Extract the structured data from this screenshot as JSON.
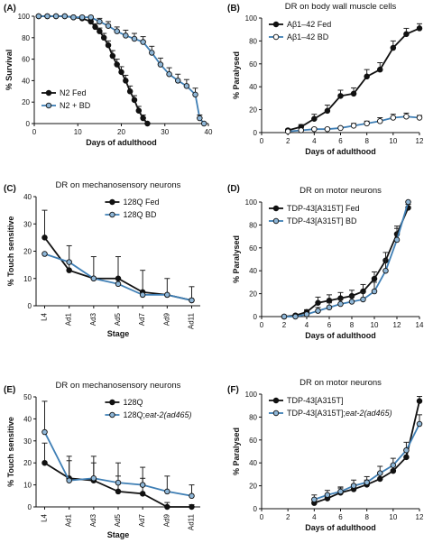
{
  "colors": {
    "black": "#111111",
    "blue": "#3f7fb5",
    "blue_fill": "#8fb7d8",
    "error": "#222222"
  },
  "chart_data": [
    {
      "id": "A",
      "letter": "(A)",
      "type": "line",
      "title": "",
      "xlabel": "Days of adulthood",
      "ylabel": "% Survival",
      "xlim": [
        0,
        40
      ],
      "ylim": [
        0,
        100
      ],
      "xticks": [
        0,
        10,
        20,
        30,
        40
      ],
      "yticks": [
        0,
        20,
        40,
        60,
        80,
        100
      ],
      "legend_position": "bottom-left",
      "series": [
        {
          "name": "N2 Fed",
          "color": "black",
          "marker": "#111111",
          "x": [
            1,
            3,
            5,
            7,
            9,
            11,
            13,
            14,
            15,
            16,
            17,
            18,
            19,
            20,
            21,
            22,
            23,
            24,
            25,
            26
          ],
          "y": [
            100,
            100,
            100,
            100,
            99,
            98,
            95,
            90,
            86,
            80,
            73,
            63,
            55,
            48,
            40,
            30,
            22,
            12,
            5,
            0
          ],
          "err": [
            0,
            0,
            0,
            0,
            1,
            1,
            2,
            3,
            3,
            4,
            4,
            5,
            5,
            5,
            5,
            5,
            4,
            4,
            3,
            0
          ]
        },
        {
          "name": "N2 + BD",
          "color": "blue",
          "marker": "#8fb7d8",
          "x": [
            1,
            3,
            5,
            7,
            9,
            11,
            13,
            15,
            17,
            19,
            21,
            23,
            25,
            27,
            29,
            31,
            33,
            35,
            37,
            38,
            39
          ],
          "y": [
            100,
            100,
            100,
            100,
            99,
            99,
            99,
            95,
            91,
            86,
            82,
            79,
            76,
            66,
            55,
            46,
            40,
            35,
            27,
            5,
            0
          ],
          "err": [
            0,
            0,
            0,
            0,
            1,
            1,
            1,
            3,
            4,
            4,
            5,
            5,
            5,
            6,
            6,
            6,
            6,
            6,
            6,
            3,
            0
          ]
        }
      ]
    },
    {
      "id": "B",
      "letter": "(B)",
      "type": "line",
      "title": "DR on body wall muscle cells",
      "xlabel": "Days of adulthood",
      "ylabel": "% Paralysed",
      "xlim": [
        0,
        12
      ],
      "ylim": [
        0,
        100
      ],
      "xticks": [
        0,
        2,
        4,
        6,
        8,
        10,
        12
      ],
      "yticks": [
        0,
        20,
        40,
        60,
        80,
        100
      ],
      "legend_position": "top-left",
      "series": [
        {
          "name": "Aβ1–42 Fed",
          "color": "black",
          "marker": "#111111",
          "x": [
            2,
            3,
            4,
            5,
            6,
            7,
            8,
            9,
            10,
            11,
            12
          ],
          "y": [
            2,
            5,
            12,
            19,
            32,
            34,
            49,
            55,
            74,
            86,
            91
          ],
          "err": [
            1,
            2,
            4,
            5,
            5,
            5,
            6,
            6,
            6,
            5,
            4
          ]
        },
        {
          "name": "Aβ1–42 BD",
          "color": "blue",
          "marker": "#ffffff",
          "x": [
            2,
            3,
            4,
            5,
            6,
            7,
            8,
            9,
            10,
            11,
            12
          ],
          "y": [
            1,
            2,
            3,
            3,
            4,
            6,
            8,
            10,
            13,
            14,
            13
          ],
          "err": [
            1,
            1,
            1,
            1,
            1,
            2,
            2,
            3,
            3,
            3,
            2
          ]
        }
      ]
    },
    {
      "id": "C",
      "letter": "(C)",
      "type": "line",
      "title": "DR on mechanosensory neurons",
      "xlabel": "Stage",
      "ylabel": "% Touch sensitive",
      "ylim": [
        0,
        40
      ],
      "yticks": [
        0,
        10,
        20,
        30,
        40
      ],
      "categories": [
        "L4",
        "Ad1",
        "Ad3",
        "Ad5",
        "Ad7",
        "Ad9",
        "Ad11"
      ],
      "legend_position": "top-right",
      "series": [
        {
          "name": "128Q Fed",
          "color": "black",
          "marker": "#111111",
          "y": [
            25,
            13,
            10,
            10,
            5,
            4,
            2
          ],
          "err": [
            10,
            9,
            8,
            8,
            8,
            6,
            5
          ]
        },
        {
          "name": "128Q BD",
          "color": "blue",
          "marker": "#8fb7d8",
          "y": [
            19,
            16,
            10,
            8,
            4,
            4,
            2
          ],
          "err": [
            0,
            0,
            0,
            0,
            0,
            0,
            0
          ]
        }
      ]
    },
    {
      "id": "D",
      "letter": "(D)",
      "type": "line",
      "title": "DR on motor neurons",
      "xlabel": "Days of adulthood",
      "ylabel": "% Paralysed",
      "xlim": [
        0,
        14
      ],
      "ylim": [
        0,
        100
      ],
      "xticks": [
        0,
        2,
        4,
        6,
        8,
        10,
        12,
        14
      ],
      "yticks": [
        0,
        20,
        40,
        60,
        80,
        100
      ],
      "legend_position": "top-left",
      "series": [
        {
          "name": "TDP-43[A315T] Fed",
          "color": "black",
          "marker": "#111111",
          "x": [
            2,
            3,
            4,
            5,
            6,
            7,
            8,
            9,
            10,
            11,
            12,
            13
          ],
          "y": [
            0,
            1,
            4,
            12,
            14,
            16,
            18,
            22,
            33,
            49,
            72,
            95
          ],
          "err": [
            0,
            1,
            2,
            5,
            5,
            5,
            5,
            6,
            6,
            7,
            7,
            3
          ]
        },
        {
          "name": "TDP-43[A315T] BD",
          "color": "blue",
          "marker": "#8fb7d8",
          "x": [
            2,
            3,
            4,
            5,
            6,
            7,
            8,
            9,
            10,
            11,
            12,
            13
          ],
          "y": [
            0,
            0,
            2,
            5,
            8,
            11,
            13,
            15,
            22,
            40,
            67,
            100
          ],
          "err": [
            0,
            0,
            1,
            3,
            4,
            4,
            5,
            6,
            8,
            10,
            10,
            0
          ]
        }
      ]
    },
    {
      "id": "E",
      "letter": "(E)",
      "type": "line",
      "title": "DR on mechanosensory neurons",
      "xlabel": "Stage",
      "ylabel": "% Touch sensitive",
      "ylim": [
        0,
        50
      ],
      "yticks": [
        0,
        10,
        20,
        30,
        40,
        50
      ],
      "categories": [
        "L4",
        "Ad1",
        "Ad3",
        "Ad5",
        "Ad7",
        "Ad9",
        "Ad11"
      ],
      "legend_position": "top-right",
      "series": [
        {
          "name": "128Q",
          "name_prefix": "128Q",
          "name_italic": "",
          "color": "black",
          "marker": "#111111",
          "y": [
            20,
            13,
            12,
            7,
            6,
            0,
            0
          ],
          "err": [
            9,
            8,
            8,
            7,
            7,
            2,
            1
          ]
        },
        {
          "name": "128Q;eat-2(ad465)",
          "name_prefix": "128Q;",
          "name_italic": "eat-2(ad465)",
          "color": "blue",
          "marker": "#8fb7d8",
          "y": [
            34,
            12,
            13,
            11,
            10,
            7,
            5
          ],
          "err": [
            14,
            11,
            10,
            9,
            8,
            7,
            5
          ]
        }
      ]
    },
    {
      "id": "F",
      "letter": "(F)",
      "type": "line",
      "title": "DR on motor neurons",
      "xlabel": "Days of adulthood",
      "ylabel": "% Paralysed",
      "xlim": [
        0,
        12
      ],
      "ylim": [
        0,
        100
      ],
      "xticks": [
        0,
        2,
        4,
        6,
        8,
        10,
        12
      ],
      "yticks": [
        0,
        20,
        40,
        60,
        80,
        100
      ],
      "legend_position": "top-left",
      "series": [
        {
          "name": "TDP-43[A315T]",
          "name_prefix": "TDP-43[A315T]",
          "name_italic": "",
          "color": "black",
          "marker": "#111111",
          "x": [
            4,
            5,
            6,
            7,
            8,
            9,
            10,
            11,
            12
          ],
          "y": [
            5,
            9,
            14,
            17,
            21,
            26,
            33,
            45,
            94
          ],
          "err": [
            3,
            3,
            4,
            4,
            4,
            5,
            5,
            6,
            4
          ]
        },
        {
          "name": "TDP-43[A315T];eat-2(ad465)",
          "name_prefix": "TDP-43[A315T];",
          "name_italic": "eat-2(ad465)",
          "color": "blue",
          "marker": "#8fb7d8",
          "x": [
            4,
            5,
            6,
            7,
            8,
            9,
            10,
            11,
            12
          ],
          "y": [
            8,
            12,
            15,
            20,
            23,
            31,
            38,
            51,
            74
          ],
          "err": [
            4,
            4,
            4,
            5,
            5,
            6,
            6,
            7,
            8
          ]
        }
      ]
    }
  ]
}
